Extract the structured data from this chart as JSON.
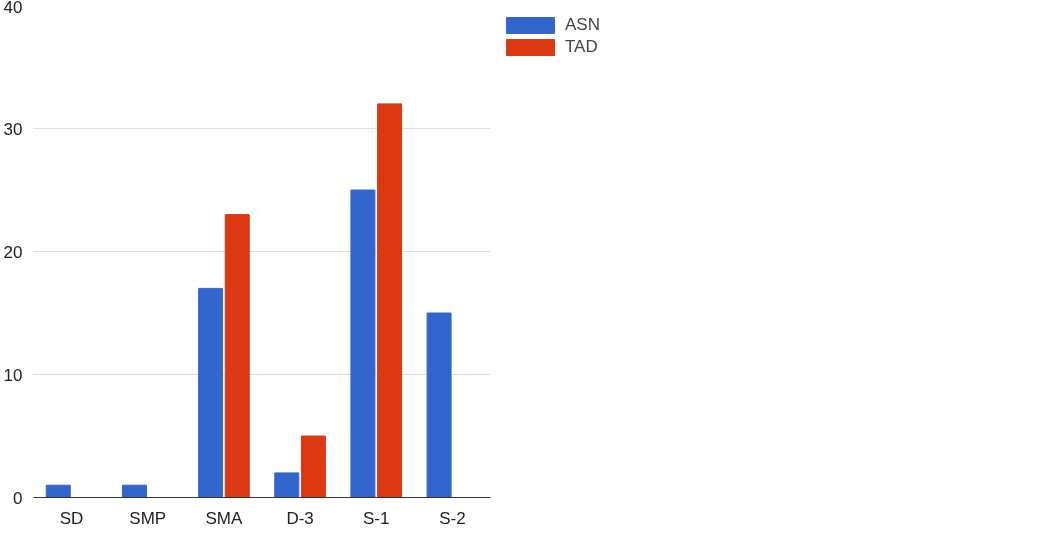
{
  "chart_data": {
    "type": "bar",
    "categories": [
      "SD",
      "SMP",
      "SMA",
      "D-3",
      "S-1",
      "S-2"
    ],
    "series": [
      {
        "name": "ASN",
        "color": "#3366cc",
        "values": [
          1,
          1,
          17,
          2,
          25,
          15
        ]
      },
      {
        "name": "TAD",
        "color": "#dc3912",
        "values": [
          0,
          0,
          23,
          5,
          32,
          0
        ]
      }
    ],
    "ylim": [
      0,
      40
    ],
    "yticks": [
      0,
      10,
      20,
      30,
      40
    ],
    "grid": "y",
    "legend": "top right"
  }
}
